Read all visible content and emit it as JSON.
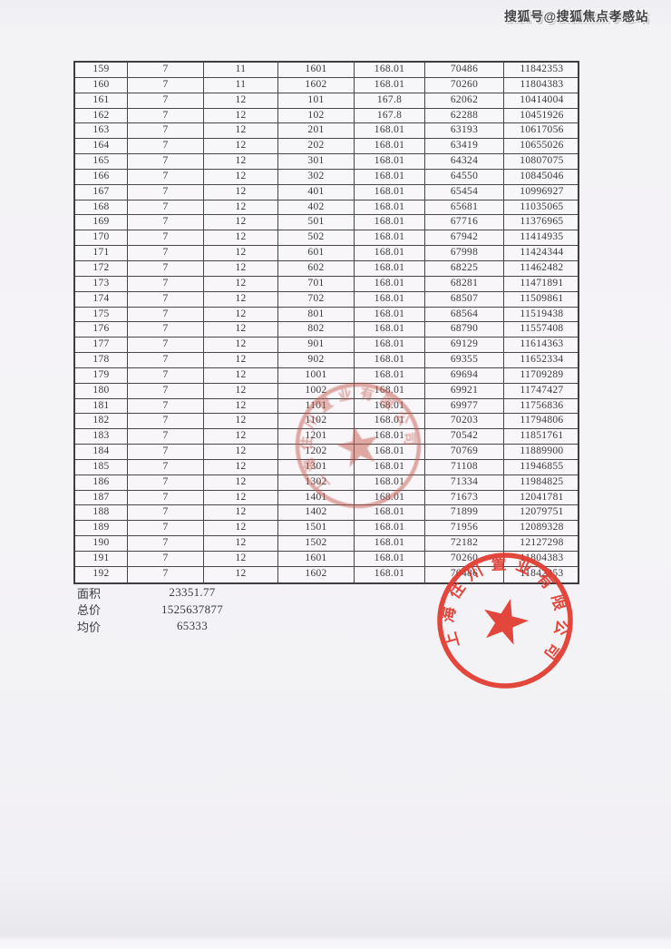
{
  "watermark": "搜狐号@搜狐焦点孝感站",
  "table": {
    "rows": [
      [
        "159",
        "7",
        "11",
        "1601",
        "168.01",
        "70486",
        "11842353"
      ],
      [
        "160",
        "7",
        "11",
        "1602",
        "168.01",
        "70260",
        "11804383"
      ],
      [
        "161",
        "7",
        "12",
        "101",
        "167.8",
        "62062",
        "10414004"
      ],
      [
        "162",
        "7",
        "12",
        "102",
        "167.8",
        "62288",
        "10451926"
      ],
      [
        "163",
        "7",
        "12",
        "201",
        "168.01",
        "63193",
        "10617056"
      ],
      [
        "164",
        "7",
        "12",
        "202",
        "168.01",
        "63419",
        "10655026"
      ],
      [
        "165",
        "7",
        "12",
        "301",
        "168.01",
        "64324",
        "10807075"
      ],
      [
        "166",
        "7",
        "12",
        "302",
        "168.01",
        "64550",
        "10845046"
      ],
      [
        "167",
        "7",
        "12",
        "401",
        "168.01",
        "65454",
        "10996927"
      ],
      [
        "168",
        "7",
        "12",
        "402",
        "168.01",
        "65681",
        "11035065"
      ],
      [
        "169",
        "7",
        "12",
        "501",
        "168.01",
        "67716",
        "11376965"
      ],
      [
        "170",
        "7",
        "12",
        "502",
        "168.01",
        "67942",
        "11414935"
      ],
      [
        "171",
        "7",
        "12",
        "601",
        "168.01",
        "67998",
        "11424344"
      ],
      [
        "172",
        "7",
        "12",
        "602",
        "168.01",
        "68225",
        "11462482"
      ],
      [
        "173",
        "7",
        "12",
        "701",
        "168.01",
        "68281",
        "11471891"
      ],
      [
        "174",
        "7",
        "12",
        "702",
        "168.01",
        "68507",
        "11509861"
      ],
      [
        "175",
        "7",
        "12",
        "801",
        "168.01",
        "68564",
        "11519438"
      ],
      [
        "176",
        "7",
        "12",
        "802",
        "168.01",
        "68790",
        "11557408"
      ],
      [
        "177",
        "7",
        "12",
        "901",
        "168.01",
        "69129",
        "11614363"
      ],
      [
        "178",
        "7",
        "12",
        "902",
        "168.01",
        "69355",
        "11652334"
      ],
      [
        "179",
        "7",
        "12",
        "1001",
        "168.01",
        "69694",
        "11709289"
      ],
      [
        "180",
        "7",
        "12",
        "1002",
        "168.01",
        "69921",
        "11747427"
      ],
      [
        "181",
        "7",
        "12",
        "1101",
        "168.01",
        "69977",
        "11756836"
      ],
      [
        "182",
        "7",
        "12",
        "1102",
        "168.01",
        "70203",
        "11794806"
      ],
      [
        "183",
        "7",
        "12",
        "1201",
        "168.01",
        "70542",
        "11851761"
      ],
      [
        "184",
        "7",
        "12",
        "1202",
        "168.01",
        "70769",
        "11889900"
      ],
      [
        "185",
        "7",
        "12",
        "1301",
        "168.01",
        "71108",
        "11946855"
      ],
      [
        "186",
        "7",
        "12",
        "1302",
        "168.01",
        "71334",
        "11984825"
      ],
      [
        "187",
        "7",
        "12",
        "1401",
        "168.01",
        "71673",
        "12041781"
      ],
      [
        "188",
        "7",
        "12",
        "1402",
        "168.01",
        "71899",
        "12079751"
      ],
      [
        "189",
        "7",
        "12",
        "1501",
        "168.01",
        "71956",
        "12089328"
      ],
      [
        "190",
        "7",
        "12",
        "1502",
        "168.01",
        "72182",
        "12127298"
      ],
      [
        "191",
        "7",
        "12",
        "1601",
        "168.01",
        "70260",
        "11804383"
      ],
      [
        "192",
        "7",
        "12",
        "1602",
        "168.01",
        "70486",
        "11842353"
      ]
    ]
  },
  "summary": [
    {
      "label": "面积",
      "value": "23351.77"
    },
    {
      "label": "总价",
      "value": "1525637877"
    },
    {
      "label": "均价",
      "value": "65333"
    }
  ],
  "stamps": {
    "middle": {
      "text": "上海住川置业有限公司",
      "color": "#c55a4e"
    },
    "bottom": {
      "text": "上海住川置业有限公司",
      "color": "#e23a2e"
    }
  },
  "colors": {
    "paper": "#f3f2f5",
    "ink": "#3a3a3e",
    "table_border": "#47474b"
  }
}
